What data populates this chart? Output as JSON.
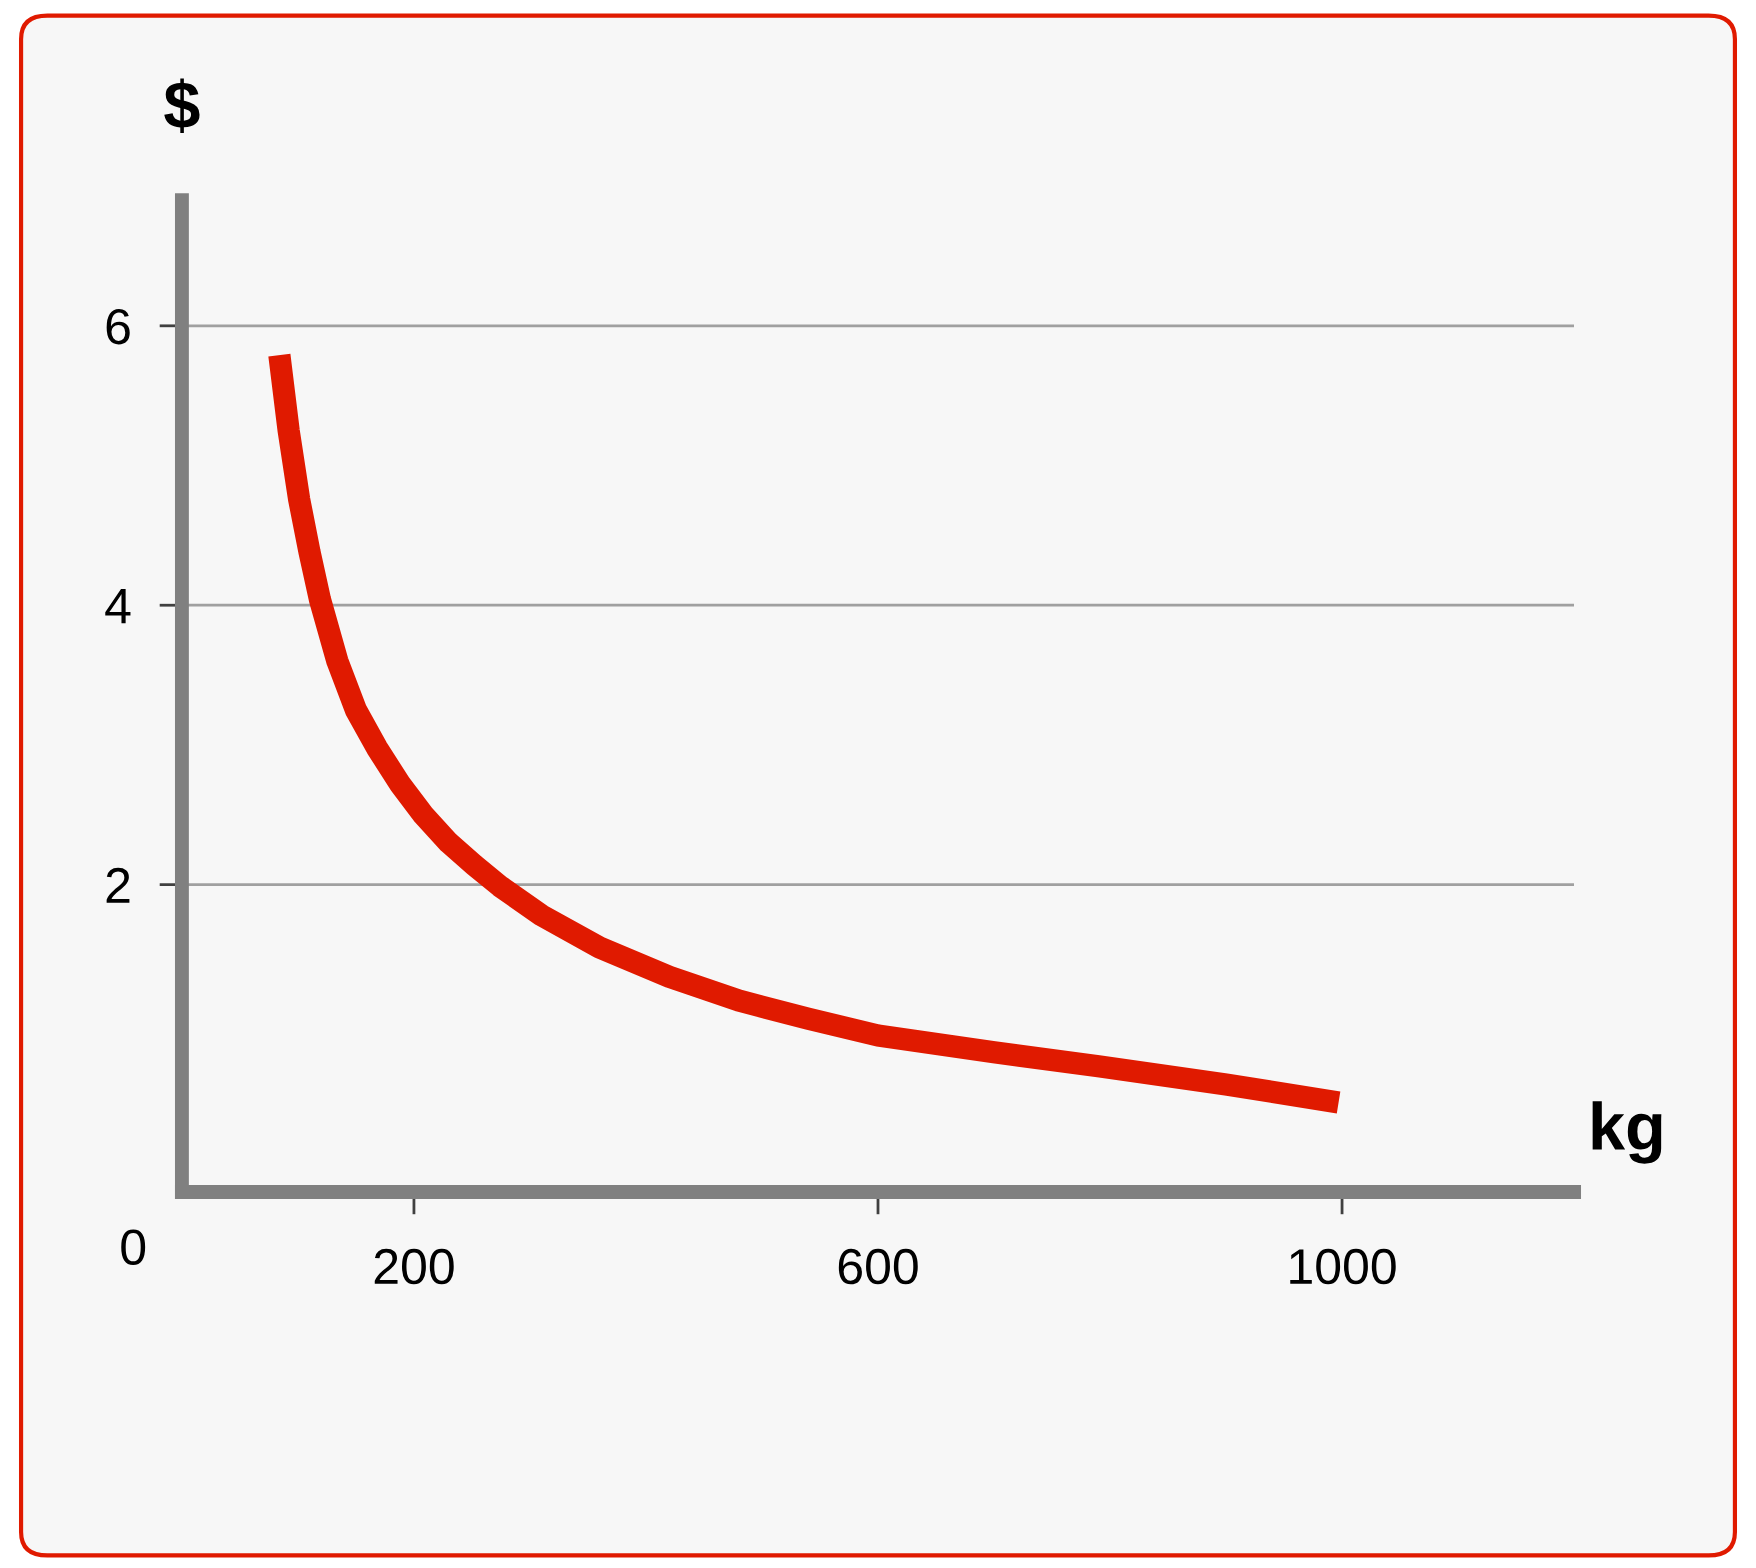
{
  "chart_data": {
    "type": "line",
    "xlabel": "kg",
    "ylabel": "$",
    "x": [
      84,
      92,
      101,
      110,
      119,
      134,
      150,
      168,
      188,
      208,
      230,
      252,
      274,
      310,
      360,
      420,
      480,
      540,
      600,
      700,
      790,
      900,
      997
    ],
    "series": [
      {
        "color": "#e01a00",
        "values": [
          5.79,
          5.25,
          4.76,
          4.38,
          4.04,
          3.6,
          3.25,
          2.98,
          2.72,
          2.5,
          2.3,
          2.14,
          1.99,
          1.78,
          1.55,
          1.34,
          1.17,
          1.04,
          0.92,
          0.8,
          0.7,
          0.57,
          0.44
        ]
      }
    ],
    "xlim": [
      0,
      1200
    ],
    "ylim": [
      -0.2,
      6.9
    ],
    "xticks": [
      200,
      600,
      1000
    ],
    "yticks": [
      2,
      4,
      6
    ],
    "grid": "y",
    "marker": "none",
    "line_style": "solid",
    "annotations": [
      "0"
    ]
  }
}
